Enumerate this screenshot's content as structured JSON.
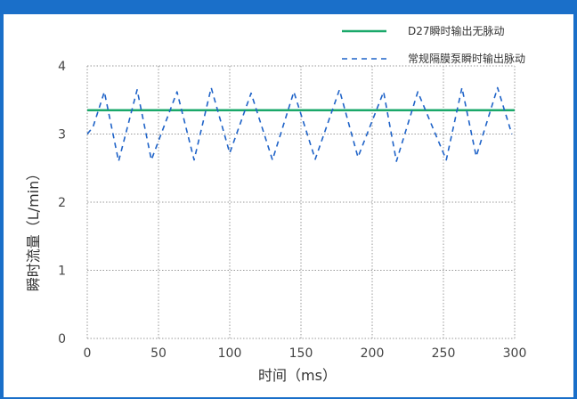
{
  "colors": {
    "frame": "#1a6fc9",
    "solid_series": "#1aa86a",
    "dashed_series": "#1f63c8",
    "grid": "#9a9a9a"
  },
  "chart_data": {
    "type": "line",
    "title": "",
    "xlabel": "时间（ms）",
    "ylabel": "瞬时流量（L/min）",
    "xlim": [
      0,
      300
    ],
    "ylim": [
      0,
      4
    ],
    "xticks": [
      "0",
      "50",
      "100",
      "150",
      "200",
      "250",
      "300"
    ],
    "yticks": [
      "0",
      "1",
      "2",
      "3",
      "4"
    ],
    "grid": true,
    "legend_position": "top-right",
    "series": [
      {
        "name": "D27瞬时输出无脉动",
        "style": "solid",
        "x": [
          0,
          300
        ],
        "y": [
          3.35,
          3.35
        ]
      },
      {
        "name": "常规隔膜泵瞬时输出脉动",
        "style": "dashed",
        "x": [
          0,
          4,
          12,
          22,
          35,
          45,
          63,
          75,
          87,
          100,
          115,
          130,
          145,
          160,
          177,
          190,
          208,
          217,
          232,
          252,
          263,
          273,
          288,
          298
        ],
        "y": [
          3.0,
          3.1,
          3.62,
          2.6,
          3.65,
          2.62,
          3.62,
          2.62,
          3.68,
          2.72,
          3.6,
          2.62,
          3.62,
          2.63,
          3.65,
          2.66,
          3.62,
          2.6,
          3.62,
          2.62,
          3.68,
          2.67,
          3.68,
          3.0
        ]
      }
    ]
  }
}
